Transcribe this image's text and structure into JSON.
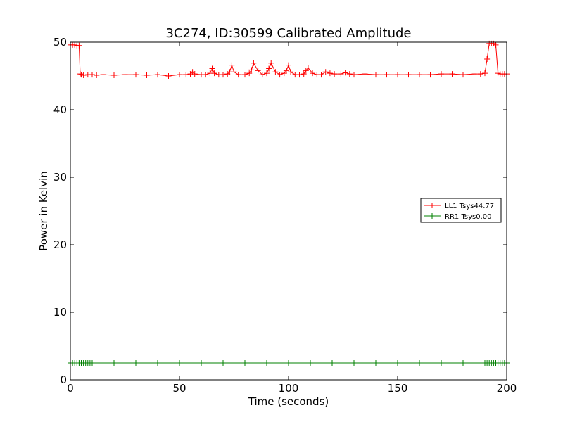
{
  "chart_data": {
    "type": "line",
    "title": "3C274, ID:30599 Calibrated Amplitude",
    "xlabel": "Time (seconds)",
    "ylabel": "Power in Kelvin",
    "xlim": [
      0,
      200
    ],
    "ylim": [
      0,
      50
    ],
    "xticks": [
      0,
      50,
      100,
      150,
      200
    ],
    "yticks": [
      0,
      10,
      20,
      30,
      40,
      50
    ],
    "grid": false,
    "legend_position": "center-right",
    "series": [
      {
        "name": "LL1 Tsys44.77",
        "color": "#ff0000",
        "marker": "+",
        "x": [
          0,
          1,
          2,
          3,
          4,
          4.5,
          5,
          6,
          8,
          10,
          12,
          15,
          20,
          25,
          30,
          35,
          40,
          45,
          50,
          53,
          55,
          56,
          57,
          60,
          62,
          64,
          65,
          66,
          68,
          70,
          72,
          73,
          74,
          75,
          77,
          80,
          82,
          83,
          84,
          86,
          88,
          90,
          91,
          92,
          94,
          96,
          98,
          99,
          100,
          101,
          103,
          105,
          107,
          108,
          109,
          111,
          113,
          115,
          117,
          119,
          121,
          124,
          126,
          128,
          130,
          135,
          140,
          145,
          150,
          155,
          160,
          165,
          170,
          175,
          180,
          185,
          188,
          190,
          191,
          192,
          193,
          194,
          195,
          196,
          197,
          198,
          199,
          200
        ],
        "y": [
          49.6,
          49.6,
          49.6,
          49.5,
          49.5,
          45.3,
          45.2,
          45.1,
          45.2,
          45.2,
          45.1,
          45.2,
          45.1,
          45.2,
          45.2,
          45.1,
          45.2,
          45.0,
          45.2,
          45.2,
          45.3,
          45.6,
          45.3,
          45.2,
          45.2,
          45.4,
          46.1,
          45.4,
          45.2,
          45.2,
          45.3,
          45.6,
          46.6,
          45.6,
          45.2,
          45.2,
          45.4,
          45.9,
          46.9,
          45.8,
          45.2,
          45.4,
          46.1,
          46.9,
          45.6,
          45.2,
          45.4,
          45.8,
          46.6,
          45.6,
          45.2,
          45.2,
          45.3,
          45.8,
          46.2,
          45.4,
          45.2,
          45.2,
          45.6,
          45.4,
          45.3,
          45.3,
          45.5,
          45.3,
          45.2,
          45.3,
          45.2,
          45.2,
          45.2,
          45.2,
          45.2,
          45.2,
          45.3,
          45.3,
          45.2,
          45.3,
          45.3,
          45.4,
          47.5,
          49.8,
          49.8,
          49.8,
          49.6,
          45.4,
          45.3,
          45.3,
          45.3,
          45.3
        ]
      },
      {
        "name": "RR1 Tsys0.00",
        "color": "#008000",
        "marker": "+",
        "x": [
          0,
          1,
          2,
          3,
          4,
          5,
          6,
          7,
          8,
          9,
          10,
          20,
          30,
          40,
          50,
          60,
          70,
          80,
          90,
          100,
          110,
          120,
          130,
          140,
          150,
          160,
          170,
          180,
          190,
          191,
          192,
          193,
          194,
          195,
          196,
          197,
          198,
          199,
          200
        ],
        "y": [
          2.5,
          2.5,
          2.5,
          2.5,
          2.5,
          2.5,
          2.5,
          2.5,
          2.5,
          2.5,
          2.5,
          2.5,
          2.5,
          2.5,
          2.5,
          2.5,
          2.5,
          2.5,
          2.5,
          2.5,
          2.5,
          2.5,
          2.5,
          2.5,
          2.5,
          2.5,
          2.5,
          2.5,
          2.5,
          2.5,
          2.5,
          2.5,
          2.5,
          2.5,
          2.5,
          2.5,
          2.5,
          2.5,
          2.5
        ]
      }
    ]
  }
}
